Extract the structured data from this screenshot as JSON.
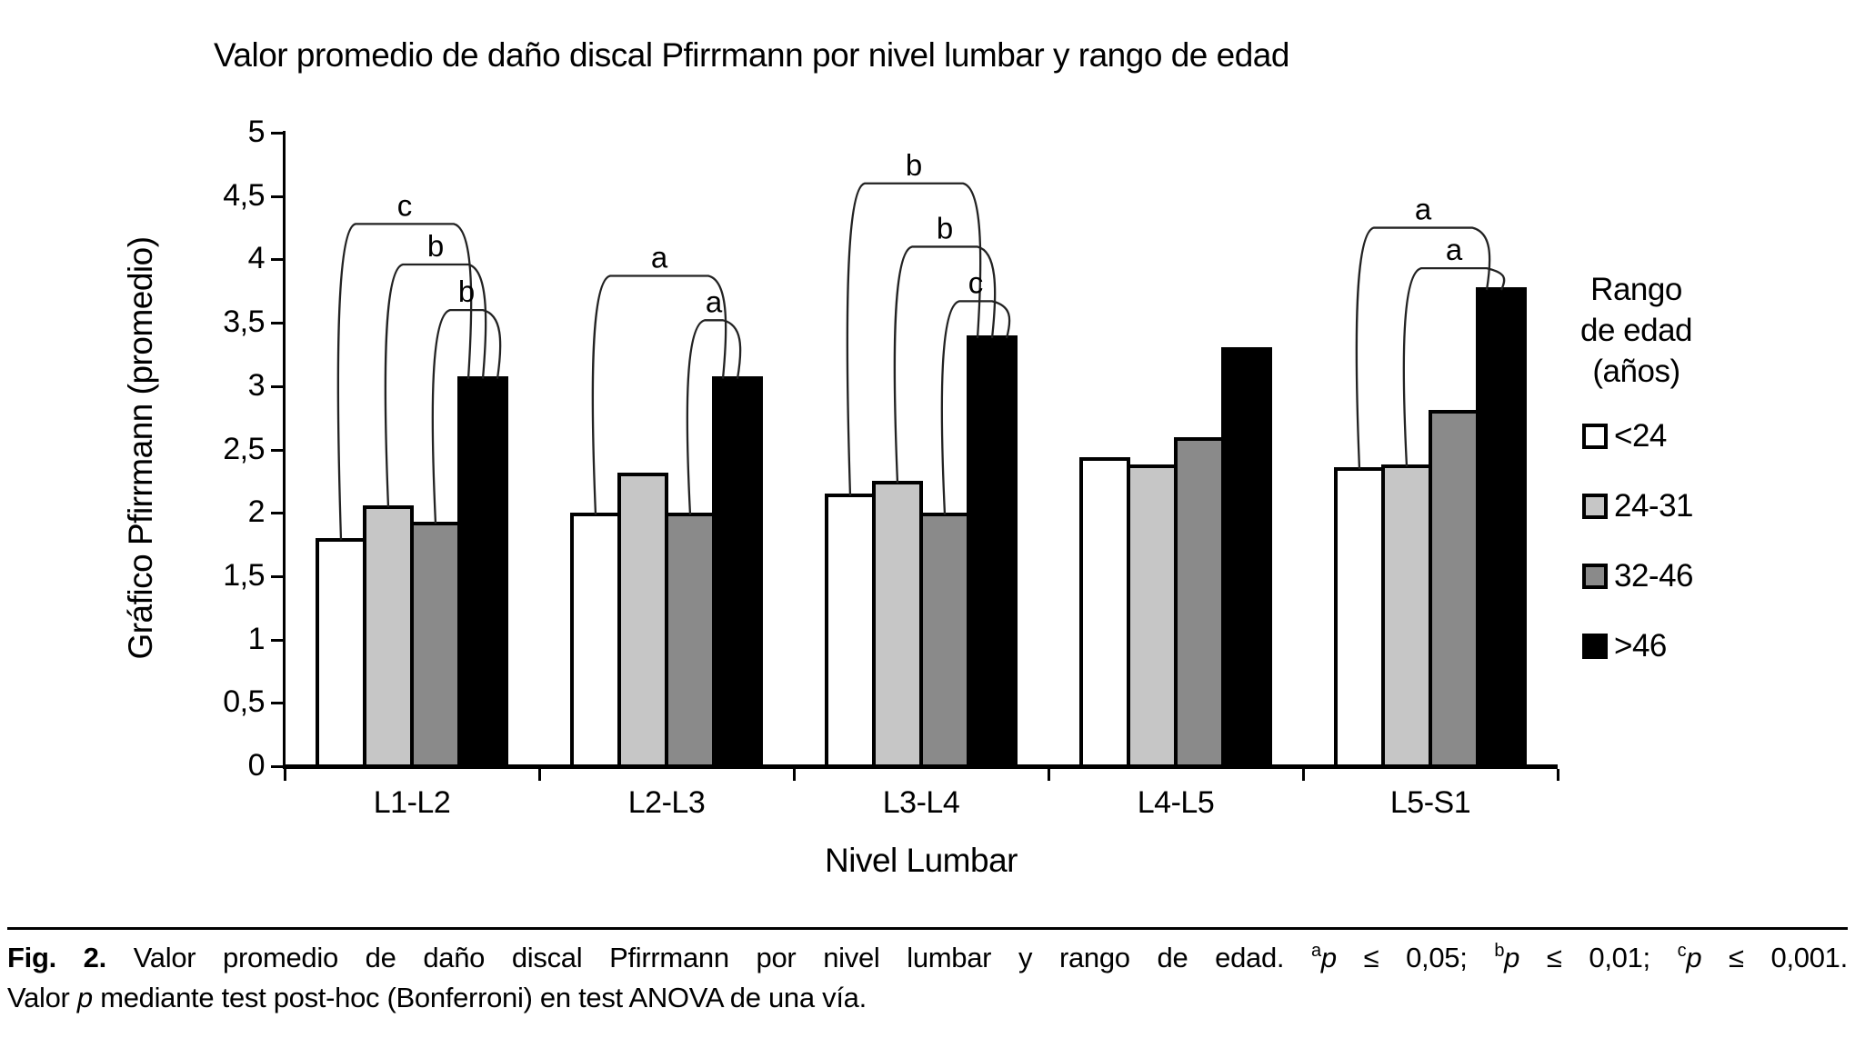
{
  "chart_data": {
    "type": "bar",
    "title": "Valor promedio de daño discal Pfirrmann por nivel lumbar y rango de edad",
    "xlabel": "Nivel Lumbar",
    "ylabel": "Gráfico Pfirrmann (promedio)",
    "ylim": [
      0,
      5
    ],
    "ytick_step": 0.5,
    "ytick_labels": [
      "0",
      "0,5",
      "1",
      "1,5",
      "2",
      "2,5",
      "3",
      "3,5",
      "4",
      "4,5",
      "5"
    ],
    "grid": false,
    "legend_position": "right",
    "legend_title_lines": [
      "Rango",
      "de edad",
      "(años)"
    ],
    "categories": [
      "L1-L2",
      "L2-L3",
      "L3-L4",
      "L4-L5",
      "L5-S1"
    ],
    "series": [
      {
        "name": "<24",
        "color": "#ffffff",
        "values": [
          1.8,
          2.0,
          2.15,
          2.44,
          2.36
        ]
      },
      {
        "name": "24-31",
        "color": "#c6c6c6",
        "values": [
          2.06,
          2.32,
          2.25,
          2.38,
          2.38
        ]
      },
      {
        "name": "32-46",
        "color": "#8a8a8a",
        "values": [
          1.93,
          2.0,
          2.0,
          2.6,
          2.81
        ]
      },
      {
        "name": ">46",
        "color": "#000000",
        "values": [
          3.08,
          3.08,
          3.4,
          3.31,
          3.78
        ]
      }
    ],
    "significance_brackets": [
      {
        "group": 0,
        "from": 0,
        "to": 3,
        "label": "c",
        "height": 4.28
      },
      {
        "group": 0,
        "from": 1,
        "to": 3,
        "label": "b",
        "height": 3.96
      },
      {
        "group": 0,
        "from": 2,
        "to": 3,
        "label": "b",
        "height": 3.6
      },
      {
        "group": 1,
        "from": 0,
        "to": 3,
        "label": "a",
        "height": 3.87
      },
      {
        "group": 1,
        "from": 2,
        "to": 3,
        "label": "a",
        "height": 3.52
      },
      {
        "group": 2,
        "from": 0,
        "to": 3,
        "label": "b",
        "height": 4.6
      },
      {
        "group": 2,
        "from": 1,
        "to": 3,
        "label": "b",
        "height": 4.1
      },
      {
        "group": 2,
        "from": 2,
        "to": 3,
        "label": "c",
        "height": 3.67
      },
      {
        "group": 4,
        "from": 0,
        "to": 3,
        "label": "a",
        "height": 4.25
      },
      {
        "group": 4,
        "from": 1,
        "to": 3,
        "label": "a",
        "height": 3.93
      }
    ]
  },
  "caption": {
    "fig": "Fig. 2.",
    "body": "Valor promedio de daño discal Pfirrmann por nivel lumbar y rango de edad.",
    "a_sup": "a",
    "a_p": "p",
    "a_rest": "≤ 0,05;",
    "b_sup": "b",
    "b_p": "p",
    "b_rest": "≤ 0,01;",
    "c_sup": "c",
    "c_p": "p",
    "c_rest": "≤ 0,001.",
    "line2_pre": "Valor",
    "line2_p": "p",
    "line2_post": "mediante test post-hoc (Bonferroni) en test ANOVA de una vía."
  }
}
